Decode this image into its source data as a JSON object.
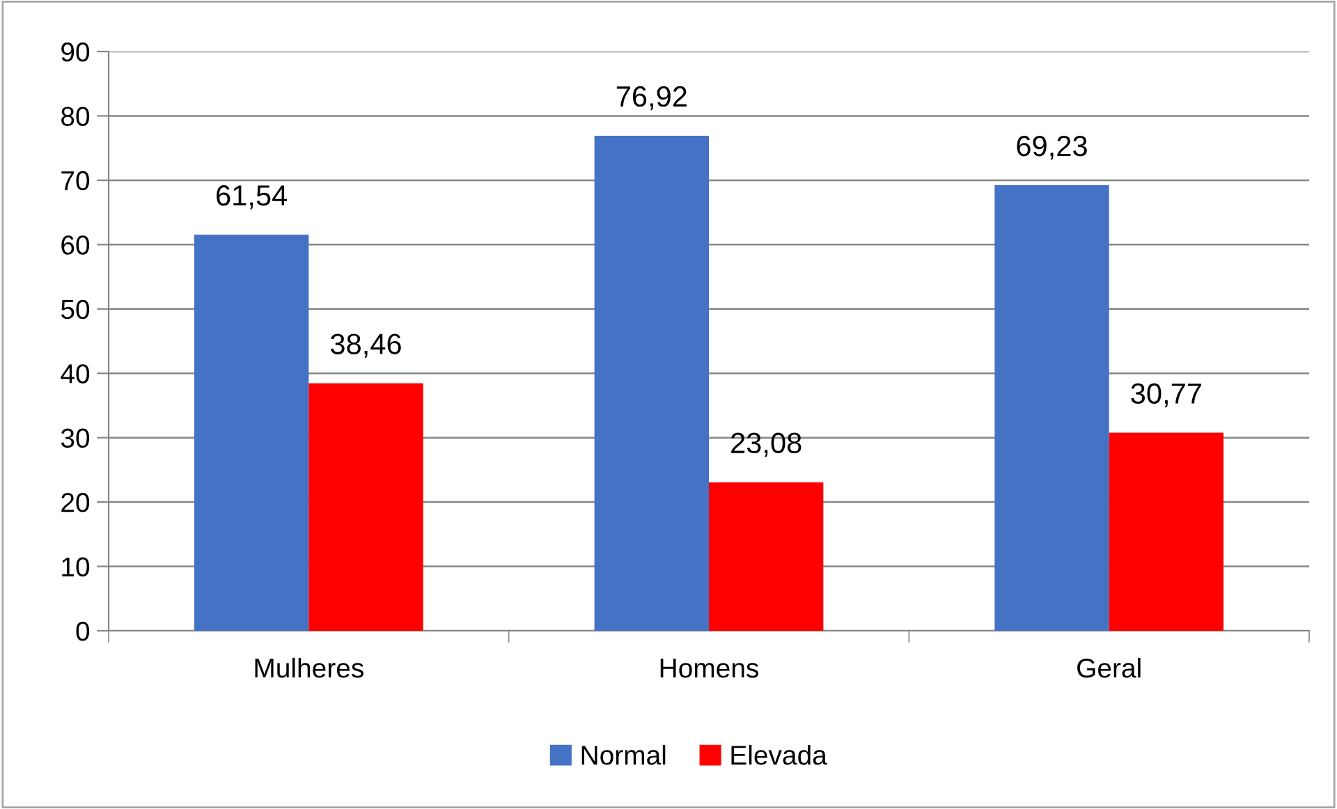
{
  "chart_data": {
    "type": "bar",
    "categories": [
      "Mulheres",
      "Homens",
      "Geral"
    ],
    "series": [
      {
        "name": "Normal",
        "color": "#4472c4",
        "values": [
          61.54,
          76.92,
          69.23
        ],
        "value_labels": [
          "61,54",
          "76,92",
          "69,23"
        ]
      },
      {
        "name": "Elevada",
        "color": "#ff0000",
        "values": [
          38.46,
          23.08,
          30.77
        ],
        "value_labels": [
          "38,46",
          "23,08",
          "30,77"
        ]
      }
    ],
    "ylim": [
      0,
      90
    ],
    "yticks": [
      0,
      10,
      20,
      30,
      40,
      50,
      60,
      70,
      80,
      90
    ],
    "grid": "y",
    "legend": "bottom"
  }
}
